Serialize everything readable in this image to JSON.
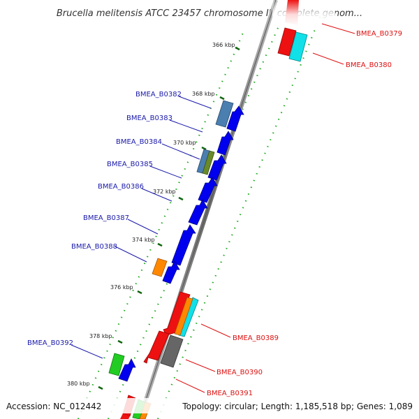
{
  "title": "Brucella melitensis ATCC 23457 chromosome II, complete genom...",
  "footer": {
    "accession": "Accession: NC_012442",
    "stats": "Topology: circular; Length: 1,185,518 bp; Genes: 1,089"
  },
  "ticks": [
    "366 kbp",
    "368 kbp",
    "370 kbp",
    "372 kbp",
    "374 kbp",
    "376 kbp",
    "378 kbp",
    "380 kbp"
  ],
  "colors": {
    "forward_strand": "#0000ee",
    "reverse_strand": "#ee0000",
    "backbone": "#777777",
    "gc_dots": "#22aa22",
    "label_forward": "#1a1aaa",
    "label_reverse": "#dd1111"
  },
  "genes_forward": [
    {
      "label": "BMEA_B0382"
    },
    {
      "label": "BMEA_B0383"
    },
    {
      "label": "BMEA_B0384"
    },
    {
      "label": "BMEA_B0385"
    },
    {
      "label": "BMEA_B0386"
    },
    {
      "label": "BMEA_B0387"
    },
    {
      "label": "BMEA_B0388"
    },
    {
      "label": "BMEA_B0392"
    }
  ],
  "genes_reverse": [
    {
      "label": "BMEA_B0379"
    },
    {
      "label": "BMEA_B0380"
    },
    {
      "label": "BMEA_B0389"
    },
    {
      "label": "BMEA_B0390"
    },
    {
      "label": "BMEA_B0391"
    }
  ]
}
